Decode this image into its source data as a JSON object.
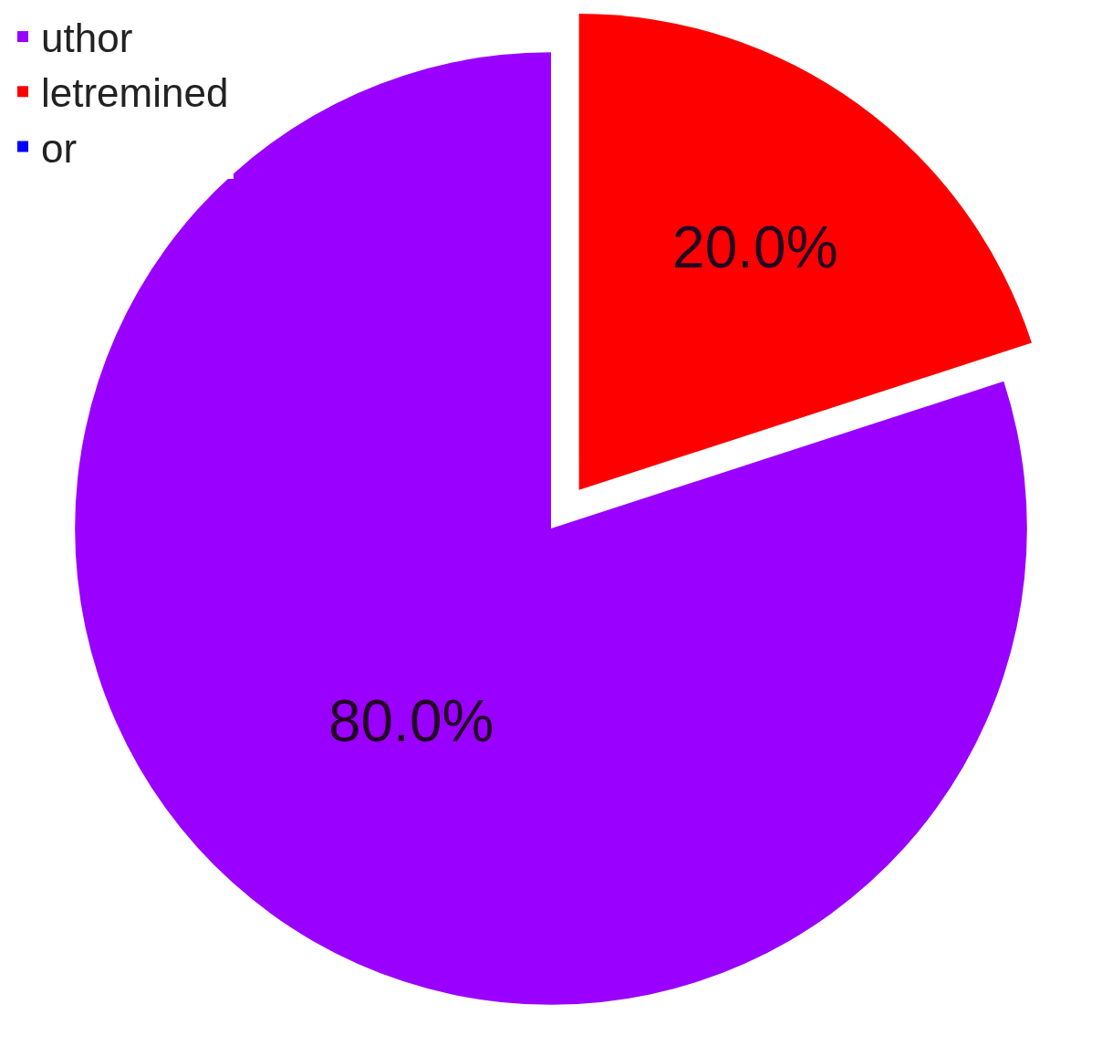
{
  "chart_data": {
    "type": "pie",
    "categories": [
      "uthor",
      "letremined",
      "or"
    ],
    "values": [
      80,
      20,
      0
    ],
    "colors": [
      "#9900ff",
      "#ff0000",
      "#0000ff"
    ],
    "value_labels": [
      "80.0%",
      "20.0%",
      null
    ],
    "legend": "top left"
  }
}
